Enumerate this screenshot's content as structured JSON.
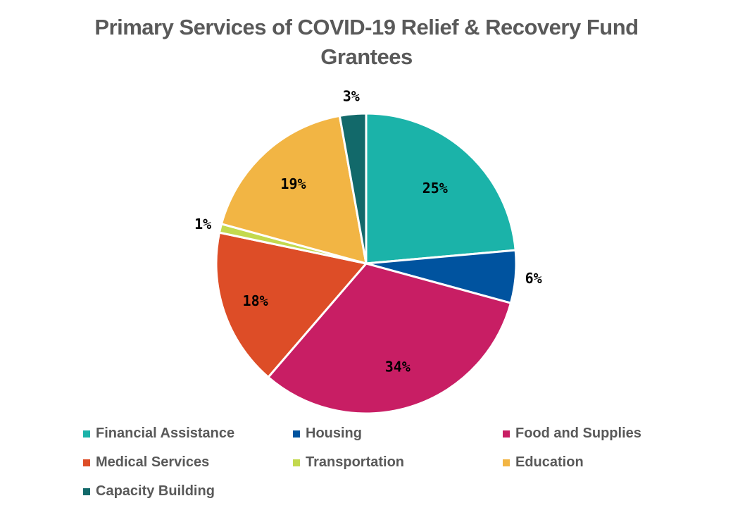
{
  "chart_data": {
    "type": "pie",
    "title_lines": [
      "Primary Services of COVID-19 Relief & Recovery Fund",
      "Grantees"
    ],
    "slices": [
      {
        "name": "Financial Assistance",
        "value": 25,
        "label": "25%",
        "color": "#1BB3A9"
      },
      {
        "name": "Housing",
        "value": 6,
        "label": "6%",
        "color": "#00539F"
      },
      {
        "name": "Food and Supplies",
        "value": 34,
        "label": "34%",
        "color": "#C81E64"
      },
      {
        "name": "Medical Services",
        "value": 18,
        "label": "18%",
        "color": "#DD4D27"
      },
      {
        "name": "Transportation",
        "value": 1,
        "label": "1%",
        "color": "#C3D94E"
      },
      {
        "name": "Education",
        "value": 19,
        "label": "19%",
        "color": "#F2B544"
      },
      {
        "name": "Capacity Building",
        "value": 3,
        "label": "3%",
        "color": "#12696A"
      }
    ],
    "legend_position": "bottom"
  }
}
